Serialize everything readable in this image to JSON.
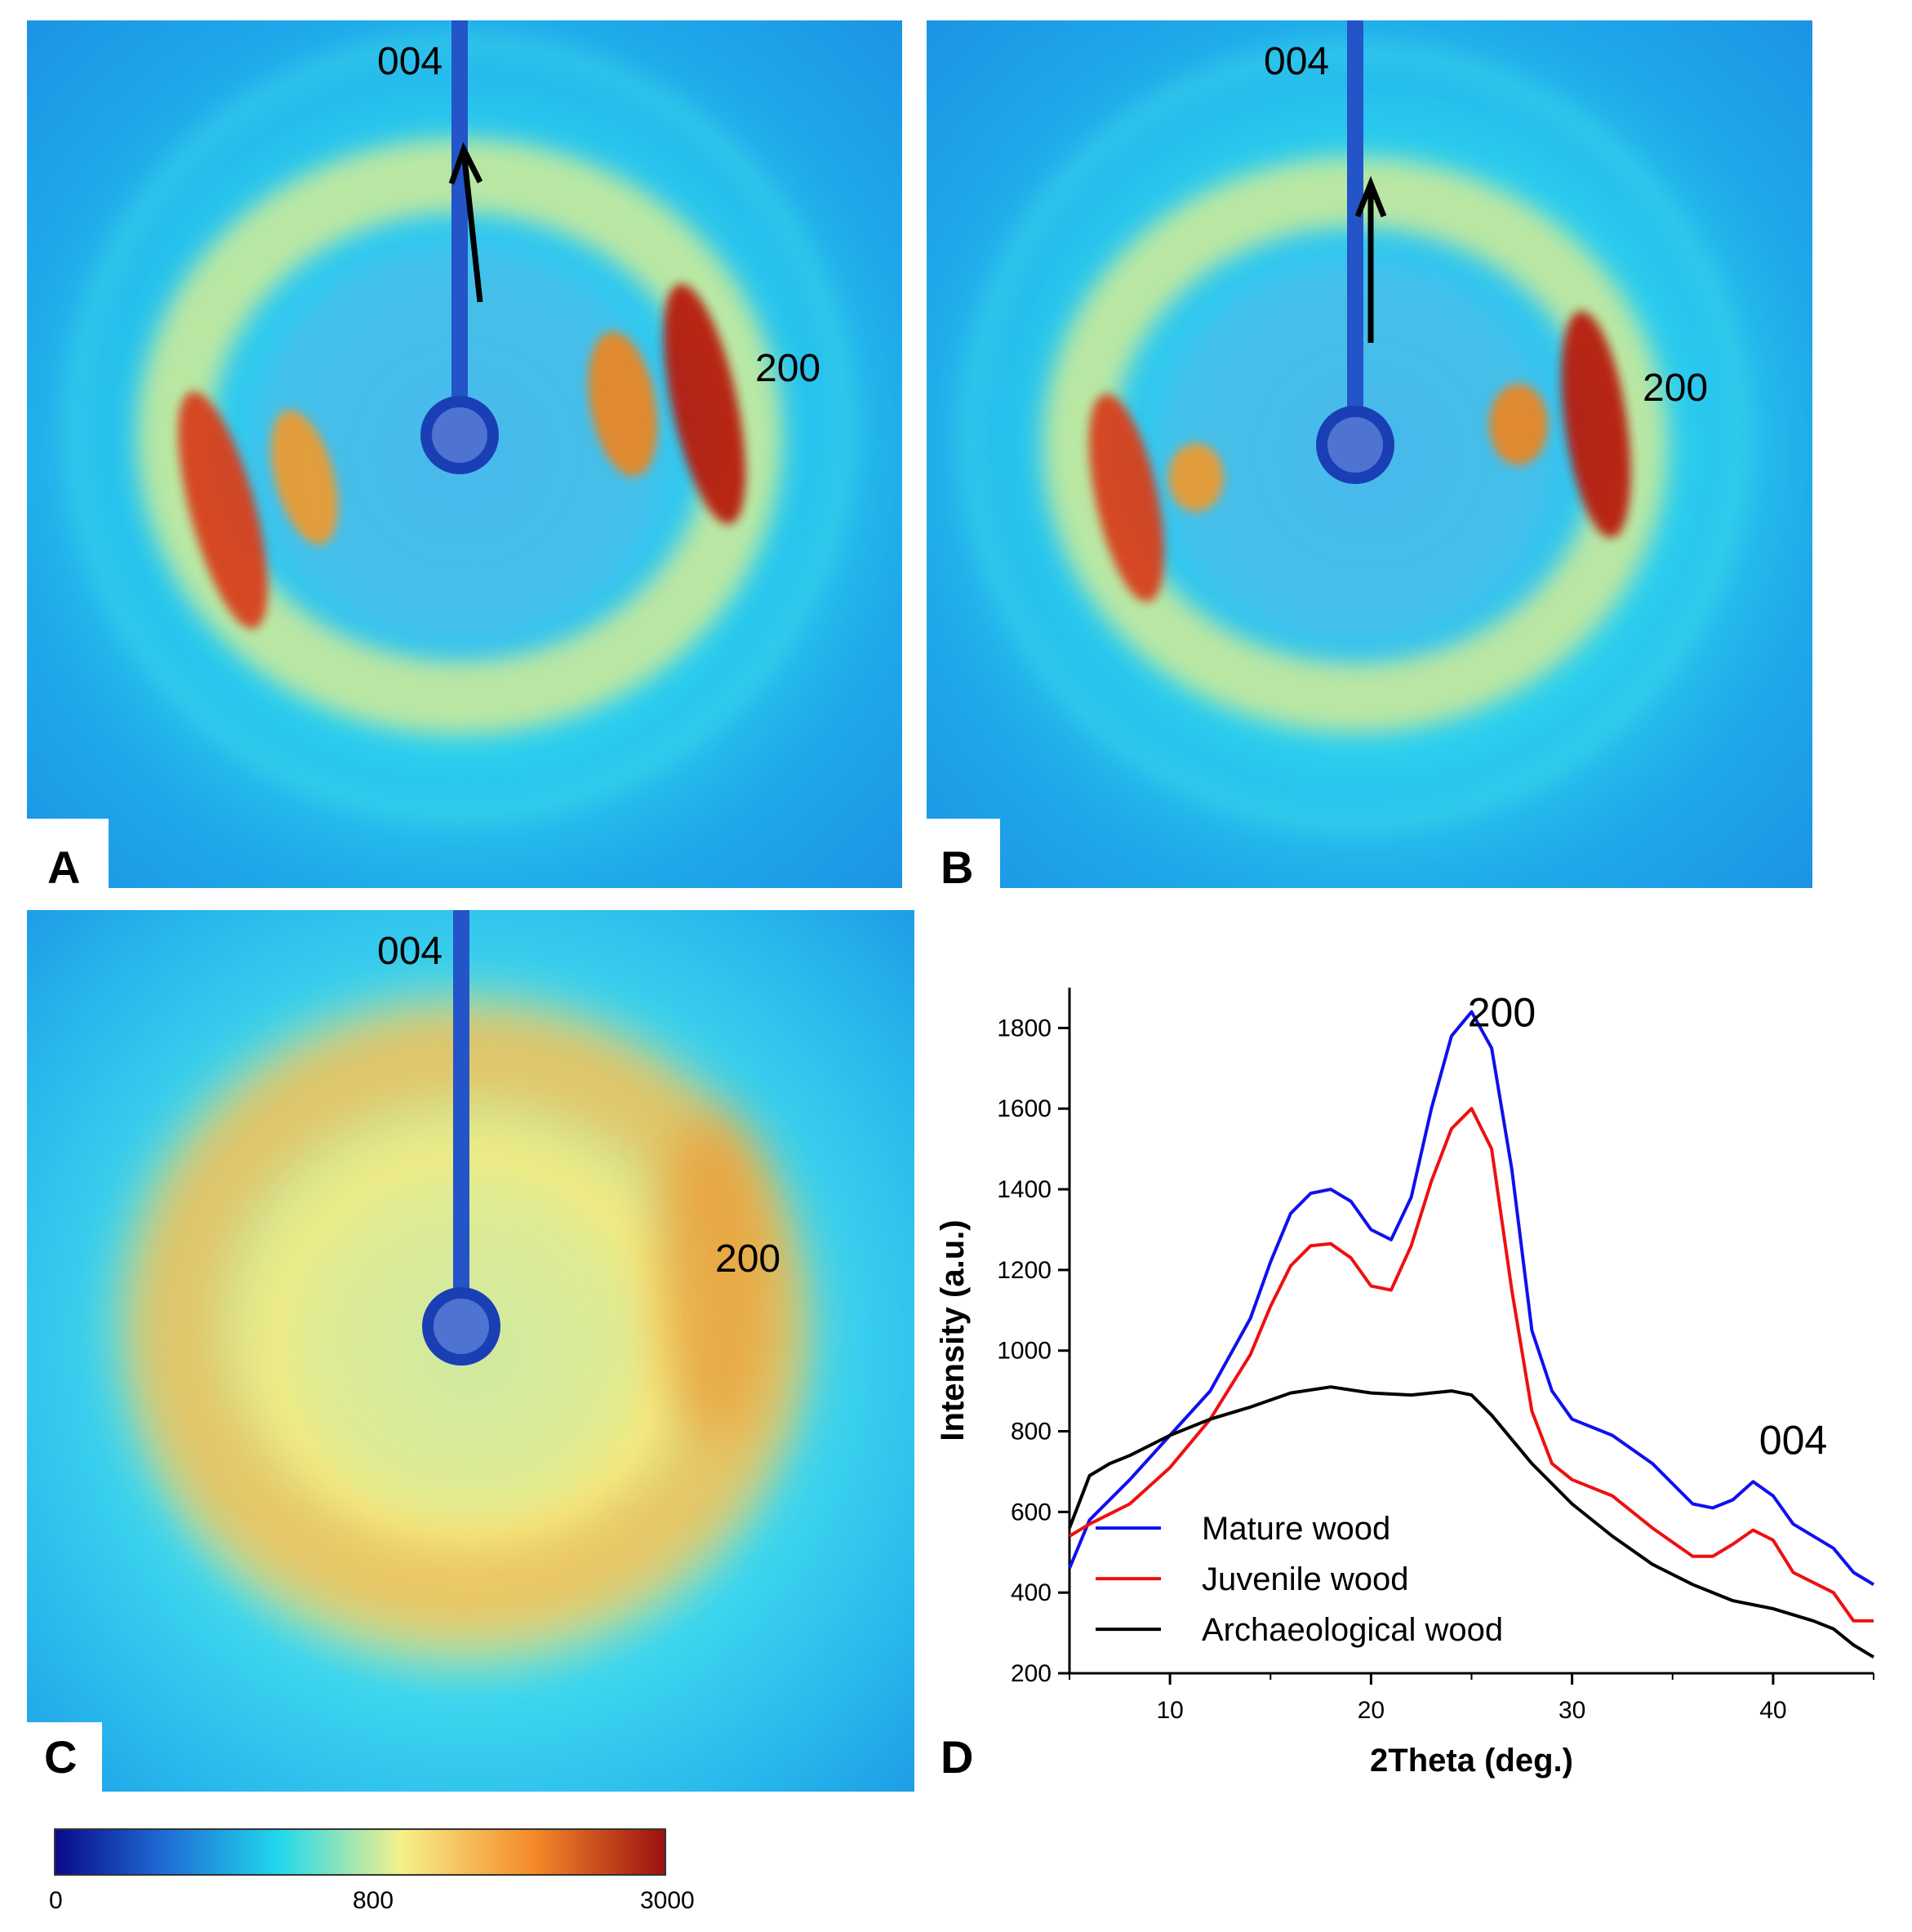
{
  "panels": {
    "A": {
      "letter": "A",
      "label_004": "004",
      "label_200": "200"
    },
    "B": {
      "letter": "B",
      "label_004": "004",
      "label_200": "200"
    },
    "C": {
      "letter": "C",
      "label_004": "004",
      "label_200": "200"
    },
    "D": {
      "letter": "D"
    }
  },
  "colorbar": {
    "min_label": "0",
    "mid_label": "800",
    "max_label": "3000",
    "min_value": 0,
    "mid_value": 800,
    "max_value": 3000,
    "colors": [
      "#0a0a8a",
      "#1f6fd6",
      "#22d8ec",
      "#f6f08a",
      "#f58a2a",
      "#9c1010"
    ]
  },
  "chart_data": {
    "type": "line",
    "title": "",
    "xlabel": "2Theta (deg.)",
    "ylabel": "Intensity (a.u.)",
    "xlim": [
      5,
      45
    ],
    "ylim": [
      200,
      1900
    ],
    "xticks": [
      10,
      20,
      30,
      40
    ],
    "yticks": [
      200,
      400,
      600,
      800,
      1000,
      1200,
      1400,
      1600,
      1800
    ],
    "grid": false,
    "legend_position": "bottom-left",
    "annotations": [
      {
        "text": "200",
        "x": 26.5,
        "y": 1840
      },
      {
        "text": "004",
        "x": 41,
        "y": 780
      }
    ],
    "series": [
      {
        "name": "Mature wood",
        "color": "#1010ee",
        "points": [
          [
            5,
            460
          ],
          [
            6,
            580
          ],
          [
            8,
            680
          ],
          [
            10,
            790
          ],
          [
            12,
            900
          ],
          [
            14,
            1080
          ],
          [
            15,
            1220
          ],
          [
            16,
            1340
          ],
          [
            17,
            1390
          ],
          [
            18,
            1400
          ],
          [
            19,
            1370
          ],
          [
            20,
            1300
          ],
          [
            21,
            1275
          ],
          [
            22,
            1380
          ],
          [
            23,
            1600
          ],
          [
            24,
            1780
          ],
          [
            25,
            1840
          ],
          [
            26,
            1750
          ],
          [
            27,
            1450
          ],
          [
            28,
            1050
          ],
          [
            29,
            900
          ],
          [
            30,
            830
          ],
          [
            32,
            790
          ],
          [
            34,
            720
          ],
          [
            36,
            620
          ],
          [
            37,
            610
          ],
          [
            38,
            630
          ],
          [
            39,
            675
          ],
          [
            40,
            640
          ],
          [
            41,
            570
          ],
          [
            43,
            510
          ],
          [
            44,
            450
          ],
          [
            45,
            420
          ]
        ]
      },
      {
        "name": "Juvenile wood",
        "color": "#ee1010",
        "points": [
          [
            5,
            540
          ],
          [
            6,
            570
          ],
          [
            8,
            620
          ],
          [
            10,
            710
          ],
          [
            12,
            830
          ],
          [
            14,
            990
          ],
          [
            15,
            1110
          ],
          [
            16,
            1210
          ],
          [
            17,
            1260
          ],
          [
            18,
            1265
          ],
          [
            19,
            1230
          ],
          [
            20,
            1160
          ],
          [
            21,
            1150
          ],
          [
            22,
            1260
          ],
          [
            23,
            1420
          ],
          [
            24,
            1550
          ],
          [
            25,
            1600
          ],
          [
            26,
            1500
          ],
          [
            27,
            1150
          ],
          [
            28,
            850
          ],
          [
            29,
            720
          ],
          [
            30,
            680
          ],
          [
            32,
            640
          ],
          [
            34,
            560
          ],
          [
            36,
            490
          ],
          [
            37,
            490
          ],
          [
            38,
            520
          ],
          [
            39,
            555
          ],
          [
            40,
            530
          ],
          [
            41,
            450
          ],
          [
            43,
            400
          ],
          [
            44,
            330
          ],
          [
            45,
            330
          ]
        ]
      },
      {
        "name": "Archaeological wood",
        "color": "#000000",
        "points": [
          [
            5,
            560
          ],
          [
            6,
            690
          ],
          [
            7,
            720
          ],
          [
            8,
            740
          ],
          [
            10,
            790
          ],
          [
            12,
            830
          ],
          [
            14,
            860
          ],
          [
            16,
            895
          ],
          [
            18,
            910
          ],
          [
            20,
            895
          ],
          [
            22,
            890
          ],
          [
            24,
            900
          ],
          [
            25,
            890
          ],
          [
            26,
            840
          ],
          [
            28,
            720
          ],
          [
            30,
            620
          ],
          [
            32,
            540
          ],
          [
            34,
            470
          ],
          [
            36,
            420
          ],
          [
            38,
            380
          ],
          [
            40,
            360
          ],
          [
            42,
            330
          ],
          [
            43,
            310
          ],
          [
            44,
            270
          ],
          [
            45,
            240
          ]
        ]
      }
    ]
  }
}
